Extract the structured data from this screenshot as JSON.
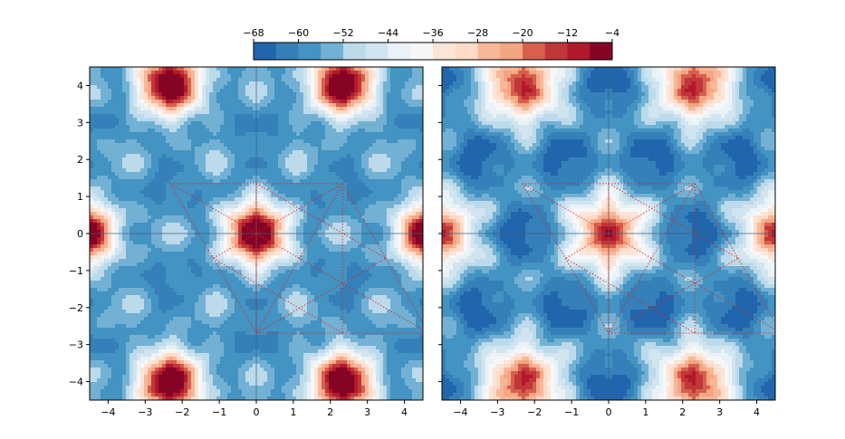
{
  "chart_data": {
    "type": "heatmap",
    "colorbar": {
      "orientation": "horizontal",
      "placement": "top",
      "colormap": "RdBu_r",
      "range": [
        -68,
        -4
      ],
      "levels": [
        -68,
        -64,
        -60,
        -56,
        -52,
        -48,
        -44,
        -40,
        -36,
        -32,
        -28,
        -24,
        -20,
        -16,
        -12,
        -8,
        -4
      ],
      "ticks": [
        -68,
        -60,
        -52,
        -44,
        -36,
        -28,
        -20,
        -12,
        -4
      ],
      "tick_labels": [
        "−68",
        "−60",
        "−52",
        "−44",
        "−36",
        "−28",
        "−20",
        "−12",
        "−4"
      ],
      "colors": [
        "#2166ac",
        "#3580b9",
        "#4393c3",
        "#72b1d4",
        "#92c5de",
        "#bcdaea",
        "#d1e5f0",
        "#eaf2f7",
        "#f7f7f7",
        "#fbe4d8",
        "#fddbc7",
        "#f7b799",
        "#f4a582",
        "#e48066",
        "#d6604d",
        "#c13639",
        "#b2182b",
        "#850425"
      ]
    },
    "panels": [
      {
        "id": "left",
        "xlim": [
          -4.5,
          4.5
        ],
        "ylim": [
          -4.5,
          4.5
        ],
        "xticks": [
          -4,
          -3,
          -2,
          -1,
          0,
          1,
          2,
          3,
          4
        ],
        "yticks": [
          -4,
          -3,
          -2,
          -1,
          0,
          1,
          2,
          3,
          4
        ],
        "xtick_labels": [
          "−4",
          "−3",
          "−2",
          "−1",
          "0",
          "1",
          "2",
          "3",
          "4"
        ],
        "ytick_labels": [
          "−4",
          "−3",
          "−2",
          "−1",
          "0",
          "1",
          "2",
          "3",
          "4"
        ],
        "show_ytick_labels": true,
        "peaks": [
          [
            0,
            0
          ],
          [
            -2.33,
            4.04
          ],
          [
            2.33,
            4.04
          ],
          [
            -2.33,
            -4.04
          ],
          [
            2.33,
            -4.04
          ],
          [
            4.66,
            0
          ],
          [
            -4.66,
            0
          ]
        ],
        "peak_value": -4,
        "background_value": -58,
        "axis_lines": {
          "x": 0,
          "y": 0
        },
        "overlay_color": "#dd2222",
        "overlay_segments": [
          [
            [
              -2.33,
              1.35
            ],
            [
              2.33,
              1.35
            ]
          ],
          [
            [
              -2.33,
              1.35
            ],
            [
              0,
              -2.69
            ]
          ],
          [
            [
              0,
              -2.69
            ],
            [
              4.66,
              -2.69
            ]
          ],
          [
            [
              2.33,
              1.35
            ],
            [
              4.66,
              -2.69
            ]
          ],
          [
            [
              0,
              1.35
            ],
            [
              0,
              -2.69
            ]
          ],
          [
            [
              2.33,
              1.35
            ],
            [
              2.33,
              -2.69
            ]
          ],
          [
            [
              -2.33,
              1.35
            ],
            [
              4.66,
              -2.69
            ]
          ],
          [
            [
              2.33,
              1.35
            ],
            [
              0,
              -2.69
            ]
          ],
          [
            [
              2.33,
              1.35
            ],
            [
              -1.165,
              -0.67
            ]
          ],
          [
            [
              0,
              -2.69
            ],
            [
              3.5,
              -0.67
            ]
          ],
          [
            [
              0,
              1.35
            ],
            [
              3.5,
              -0.67
            ]
          ],
          [
            [
              -1.165,
              -0.67
            ],
            [
              2.33,
              -2.69
            ]
          ]
        ]
      },
      {
        "id": "right",
        "xlim": [
          -4.5,
          4.5
        ],
        "ylim": [
          -4.5,
          4.5
        ],
        "xticks": [
          -4,
          -3,
          -2,
          -1,
          0,
          1,
          2,
          3,
          4
        ],
        "yticks": [
          -4,
          -3,
          -2,
          -1,
          0,
          1,
          2,
          3,
          4
        ],
        "xtick_labels": [
          "−4",
          "−3",
          "−2",
          "−1",
          "0",
          "1",
          "2",
          "3",
          "4"
        ],
        "ytick_labels": [],
        "show_ytick_labels": false,
        "peaks": [
          [
            0,
            0
          ],
          [
            -2.33,
            4.04
          ],
          [
            2.33,
            4.04
          ],
          [
            -2.33,
            -4.04
          ],
          [
            2.33,
            -4.04
          ],
          [
            4.66,
            0
          ],
          [
            -4.66,
            0
          ]
        ],
        "peak_value": -4,
        "background_value": -60,
        "axis_lines": {
          "x": 0,
          "y": 0
        },
        "overlay_color": "#dd2222",
        "overlay_segments": [
          [
            [
              -2.33,
              1.35
            ],
            [
              2.33,
              1.35
            ]
          ],
          [
            [
              -2.33,
              1.35
            ],
            [
              0,
              -2.69
            ]
          ],
          [
            [
              0,
              -2.69
            ],
            [
              4.66,
              -2.69
            ]
          ],
          [
            [
              2.33,
              1.35
            ],
            [
              4.66,
              -2.69
            ]
          ],
          [
            [
              0,
              1.35
            ],
            [
              0,
              -2.69
            ]
          ],
          [
            [
              2.33,
              1.35
            ],
            [
              2.33,
              -2.69
            ]
          ],
          [
            [
              -2.33,
              1.35
            ],
            [
              4.66,
              -2.69
            ]
          ],
          [
            [
              2.33,
              1.35
            ],
            [
              0,
              -2.69
            ]
          ],
          [
            [
              2.33,
              1.35
            ],
            [
              -1.165,
              -0.67
            ]
          ],
          [
            [
              0,
              -2.69
            ],
            [
              3.5,
              -0.67
            ]
          ],
          [
            [
              0,
              1.35
            ],
            [
              3.5,
              -0.67
            ]
          ],
          [
            [
              -1.165,
              -0.67
            ],
            [
              2.33,
              -2.69
            ]
          ]
        ]
      }
    ]
  }
}
